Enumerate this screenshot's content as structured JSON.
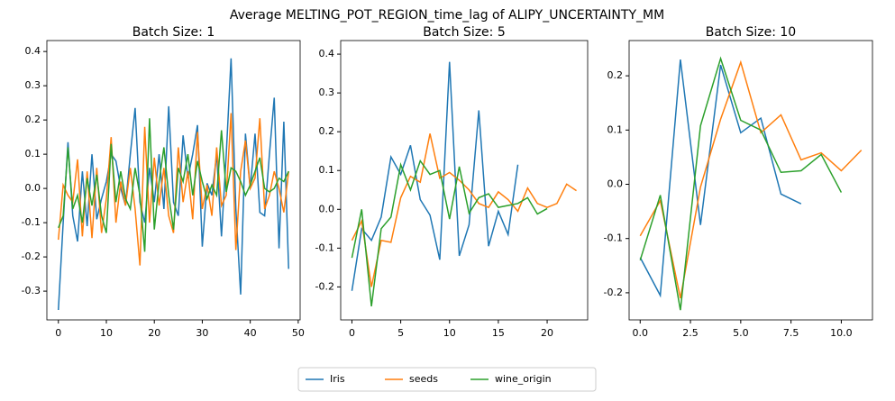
{
  "title": "Average MELTING_POT_REGION_time_lag of ALIPY_UNCERTAINTY_MM",
  "legend": "lower center",
  "chart_data": [
    {
      "type": "line",
      "title": "Batch Size: 1",
      "x": [
        0,
        1,
        2,
        3,
        4,
        5,
        6,
        7,
        8,
        9,
        10,
        11,
        12,
        13,
        14,
        15,
        16,
        17,
        18,
        19,
        20,
        21,
        22,
        23,
        24,
        25,
        26,
        27,
        28,
        29,
        30,
        31,
        32,
        33,
        34,
        35,
        36,
        37,
        38,
        39,
        40,
        41,
        42,
        43,
        44,
        45,
        46,
        47,
        48
      ],
      "series": [
        {
          "name": "Iris",
          "color": "#1f77b4",
          "values": [
            -0.355,
            -0.1,
            0.135,
            -0.08,
            -0.155,
            0.05,
            -0.11,
            0.1,
            -0.09,
            -0.03,
            0.02,
            0.1,
            0.08,
            0.0,
            -0.05,
            0.1,
            0.235,
            -0.04,
            -0.1,
            0.06,
            -0.04,
            0.1,
            -0.06,
            0.24,
            -0.04,
            -0.08,
            0.155,
            0.03,
            0.1,
            0.185,
            -0.17,
            0.015,
            -0.02,
            0.1,
            -0.14,
            0.1,
            0.38,
            -0.06,
            -0.31,
            0.16,
            0.0,
            0.16,
            -0.07,
            -0.08,
            0.1,
            0.265,
            -0.175,
            0.195,
            -0.235
          ]
        },
        {
          "name": "seeds",
          "color": "#ff7f0e",
          "values": [
            -0.15,
            0.01,
            -0.02,
            -0.04,
            0.085,
            -0.14,
            0.05,
            -0.145,
            0.06,
            -0.13,
            -0.03,
            0.15,
            -0.1,
            0.02,
            -0.05,
            0.06,
            -0.06,
            -0.225,
            0.18,
            -0.1,
            0.09,
            -0.05,
            0.06,
            -0.08,
            -0.13,
            0.12,
            -0.04,
            0.05,
            -0.09,
            0.165,
            -0.06,
            0.01,
            -0.08,
            0.12,
            -0.05,
            -0.02,
            0.22,
            -0.18,
            0.05,
            0.14,
            0.0,
            0.03,
            0.205,
            -0.06,
            -0.02,
            0.05,
            0.0,
            -0.07,
            0.05
          ]
        },
        {
          "name": "wine_origin",
          "color": "#2ca02c",
          "values": [
            -0.115,
            -0.08,
            0.12,
            -0.06,
            -0.02,
            -0.1,
            0.03,
            -0.05,
            0.04,
            -0.08,
            -0.13,
            0.13,
            -0.04,
            0.05,
            -0.03,
            -0.06,
            0.06,
            -0.02,
            -0.185,
            0.205,
            -0.12,
            0.02,
            0.12,
            -0.02,
            -0.12,
            0.06,
            0.02,
            0.1,
            -0.02,
            0.08,
            0.02,
            -0.03,
            0.01,
            -0.02,
            0.17,
            -0.01,
            0.06,
            0.05,
            0.02,
            -0.02,
            0.01,
            0.05,
            0.09,
            0.0,
            -0.01,
            0.0,
            0.03,
            0.02,
            0.05
          ]
        }
      ],
      "xlim": [
        -2.4,
        50.4
      ],
      "xticks": [
        0,
        10,
        20,
        30,
        40,
        50
      ],
      "ylim": [
        -0.384,
        0.432
      ],
      "yticks": [
        -0.3,
        -0.2,
        -0.1,
        {
          "value": 0,
          "label": "0.0"
        },
        0.1,
        0.2,
        0.3,
        0.4
      ],
      "grid": false
    },
    {
      "type": "line",
      "title": "Batch Size: 5",
      "x": [
        0,
        1,
        2,
        3,
        4,
        5,
        6,
        7,
        8,
        9,
        10,
        11,
        12,
        13,
        14,
        15,
        16,
        17,
        18,
        19,
        20,
        21,
        22,
        23
      ],
      "series": [
        {
          "name": "Iris",
          "color": "#1f77b4",
          "values": [
            -0.21,
            -0.05,
            -0.08,
            -0.02,
            0.135,
            0.09,
            0.165,
            0.025,
            -0.015,
            -0.13,
            0.38,
            -0.12,
            -0.04,
            0.255,
            -0.095,
            -0.005,
            -0.065,
            0.115,
            null,
            null,
            null,
            null,
            null,
            null
          ]
        },
        {
          "name": "seeds",
          "color": "#ff7f0e",
          "values": [
            -0.08,
            -0.03,
            -0.2,
            -0.08,
            -0.085,
            0.03,
            0.085,
            0.07,
            0.195,
            0.08,
            0.095,
            0.075,
            0.05,
            0.015,
            0.005,
            0.045,
            0.025,
            -0.005,
            0.055,
            0.015,
            0.005,
            0.015,
            0.065,
            0.048
          ]
        },
        {
          "name": "wine_origin",
          "color": "#2ca02c",
          "values": [
            -0.125,
            0.0,
            -0.25,
            -0.05,
            -0.02,
            0.115,
            0.05,
            0.125,
            0.09,
            0.1,
            -0.025,
            0.11,
            -0.01,
            0.03,
            0.04,
            0.005,
            0.01,
            0.015,
            0.03,
            -0.012,
            0.002,
            null,
            null,
            null
          ]
        }
      ],
      "xlim": [
        -1.15,
        24.15
      ],
      "xticks": [
        0,
        5,
        10,
        15,
        20
      ],
      "ylim": [
        -0.285,
        0.435
      ],
      "yticks": [
        -0.2,
        -0.1,
        {
          "value": 0,
          "label": "0.0"
        },
        0.1,
        0.2,
        0.3,
        0.4
      ],
      "grid": false
    },
    {
      "type": "line",
      "title": "Batch Size: 10",
      "x": [
        0,
        1,
        2,
        3,
        4,
        5,
        6,
        7,
        8,
        9,
        10,
        11
      ],
      "series": [
        {
          "name": "Iris",
          "color": "#1f77b4",
          "values": [
            -0.135,
            -0.205,
            0.23,
            -0.075,
            0.22,
            0.095,
            0.122,
            -0.018,
            -0.036,
            null,
            null,
            null
          ]
        },
        {
          "name": "seeds",
          "color": "#ff7f0e",
          "values": [
            -0.095,
            -0.03,
            -0.21,
            -0.005,
            0.12,
            0.225,
            0.095,
            0.128,
            0.045,
            0.058,
            0.025,
            0.063
          ]
        },
        {
          "name": "wine_origin",
          "color": "#2ca02c",
          "values": [
            -0.14,
            -0.02,
            -0.232,
            0.108,
            0.232,
            0.118,
            0.1,
            0.022,
            0.025,
            0.055,
            -0.015,
            null
          ]
        }
      ],
      "xlim": [
        -0.55,
        11.55
      ],
      "xticks": [
        {
          "value": 0,
          "label": "0.0"
        },
        {
          "value": 2.5,
          "label": "2.5"
        },
        {
          "value": 5,
          "label": "5.0"
        },
        {
          "value": 7.5,
          "label": "7.5"
        },
        {
          "value": 10,
          "label": "10.0"
        }
      ],
      "ylim": [
        -0.25,
        0.265
      ],
      "yticks": [
        -0.2,
        -0.1,
        {
          "value": 0,
          "label": "0.0"
        },
        0.1,
        0.2
      ],
      "grid": false
    }
  ]
}
